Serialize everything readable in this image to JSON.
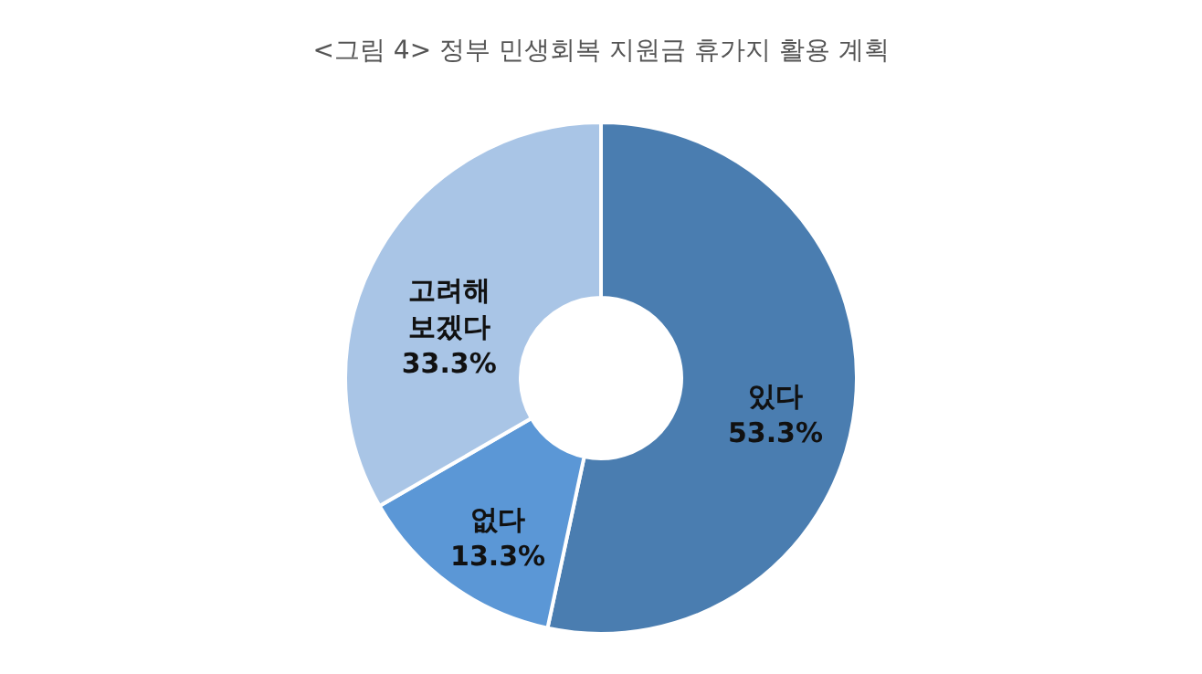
{
  "chart_data": {
    "type": "donut",
    "title": "<그림 4> 정부 민생회복 지원금 휴가지 활용 계획",
    "categories": [
      "있다",
      "없다",
      "고려해 보겠다"
    ],
    "values": [
      53.3,
      13.3,
      33.3
    ],
    "value_labels": [
      "53.3%",
      "13.3%",
      "33.3%"
    ],
    "colors": [
      "#4a7db0",
      "#5b97d6",
      "#a9c5e6"
    ],
    "legend": false
  }
}
